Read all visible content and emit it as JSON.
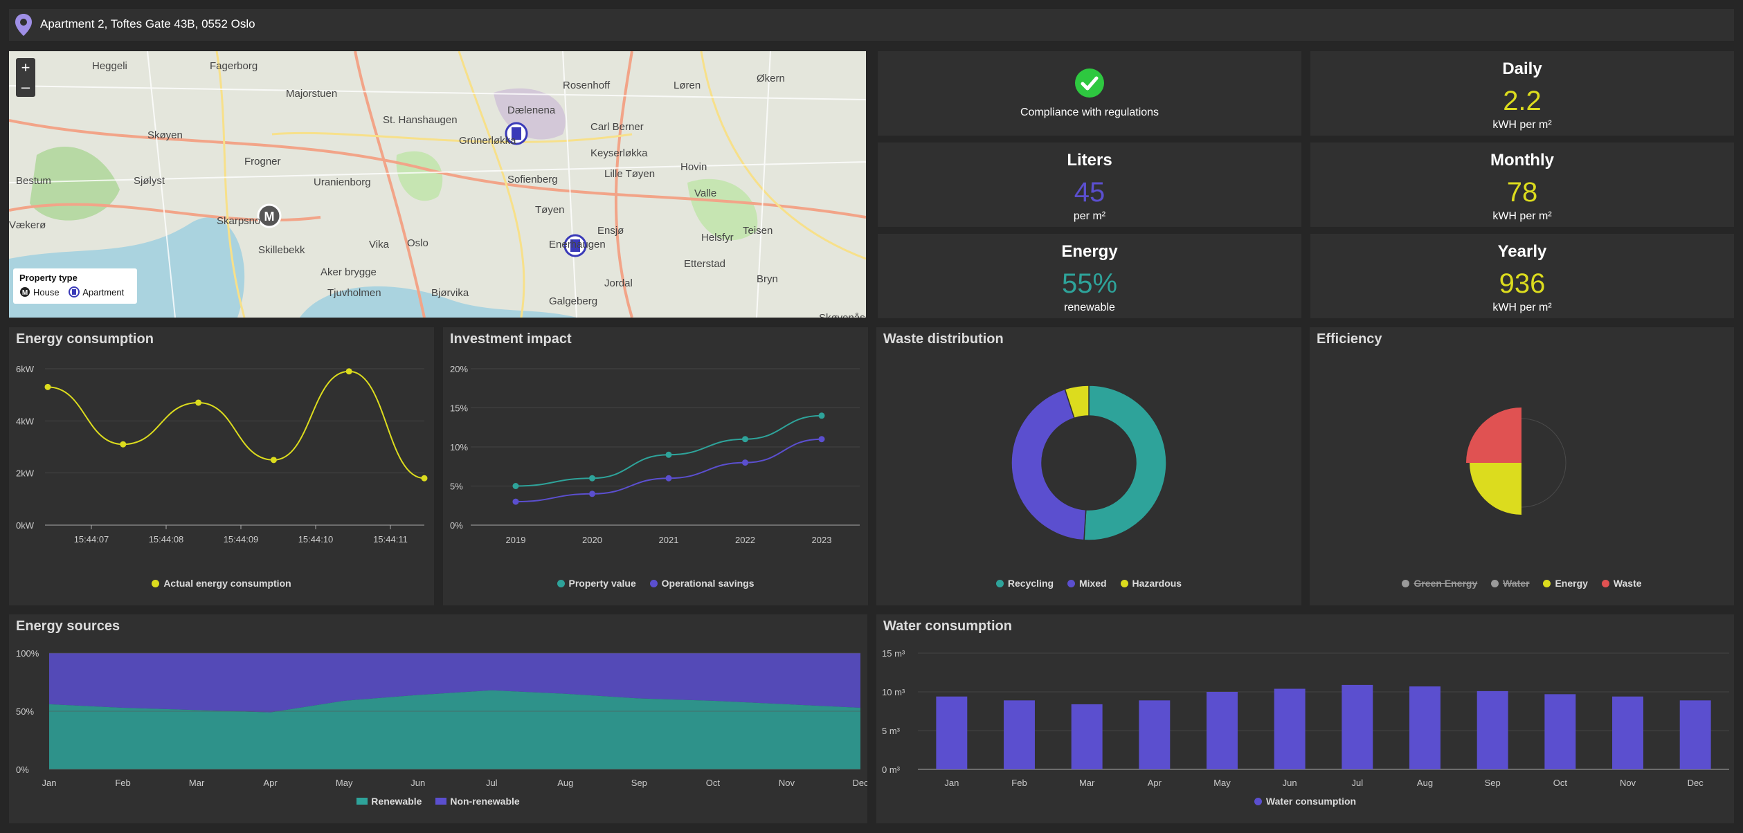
{
  "header": {
    "address": "Apartment 2, Toftes Gate 43B, 0552 Oslo"
  },
  "map": {
    "zoom_in": "+",
    "zoom_out": "–",
    "legend": {
      "title": "Property type",
      "house": "House",
      "apartment": "Apartment"
    },
    "places": [
      "Heggeli",
      "Fagerborg",
      "Rosenhoff",
      "Løren",
      "Økern",
      "Majorstuen",
      "Dælenena",
      "Skøyen",
      "St. Hanshaugen",
      "Carl Berner",
      "Frogner",
      "Grünerløkka",
      "Keyserløkka",
      "Bestum",
      "Sjølyst",
      "Uranienborg",
      "Sofienberg",
      "Hovin",
      "Lille Tøyen",
      "Valle",
      "Skarpsno",
      "Tøyen",
      "Vækerø",
      "Skillebekk",
      "Vika",
      "Oslo",
      "Ensjø",
      "Helsfyr",
      "Teisen",
      "Aker brygge",
      "Enerhaugen",
      "Etterstad",
      "Tjuvholmen",
      "Jordal",
      "Bjørvika",
      "Bryn",
      "Galgeberg",
      "Skøyenåsen"
    ]
  },
  "stats": {
    "compliance": "Compliance with regulations",
    "daily": {
      "title": "Daily",
      "value": "2.2",
      "unit": "kWH per m²"
    },
    "liters": {
      "title": "Liters",
      "value": "45",
      "unit": "per m²"
    },
    "monthly": {
      "title": "Monthly",
      "value": "78",
      "unit": "kWH per m²"
    },
    "energy": {
      "title": "Energy",
      "value": "55%",
      "unit": "renewable"
    },
    "yearly": {
      "title": "Yearly",
      "value": "936",
      "unit": "kWH per m²"
    }
  },
  "colors": {
    "yellow": "#dcdc1e",
    "purple": "#5b4fcf",
    "teal": "#2ea39a",
    "red": "#e05252",
    "grey": "#9a9a9a",
    "green": "#2ec840"
  },
  "chart_data": [
    {
      "type": "line",
      "title": "Energy consumption",
      "x_ticks": [
        "15:44:07",
        "15:44:08",
        "15:44:09",
        "15:44:10",
        "15:44:11"
      ],
      "y_ticks": [
        "0kW",
        "2kW",
        "4kW",
        "6kW"
      ],
      "ylim": [
        0,
        6
      ],
      "x": [
        0,
        1,
        2,
        3,
        4,
        5
      ],
      "series": [
        {
          "name": "Actual energy consumption",
          "values": [
            5.3,
            3.1,
            4.7,
            2.5,
            5.9,
            1.8
          ]
        }
      ]
    },
    {
      "type": "line",
      "title": "Investment impact",
      "categories": [
        "2019",
        "2020",
        "2021",
        "2022",
        "2023"
      ],
      "y_ticks": [
        "0%",
        "5%",
        "10%",
        "15%",
        "20%"
      ],
      "ylim": [
        0,
        20
      ],
      "series": [
        {
          "name": "Property value",
          "values": [
            5,
            6,
            9,
            11,
            14
          ]
        },
        {
          "name": "Operational savings",
          "values": [
            3,
            4,
            6,
            8,
            11
          ]
        }
      ]
    },
    {
      "type": "pie",
      "title": "Waste distribution",
      "labels": [
        "Recycling",
        "Mixed",
        "Hazardous"
      ],
      "values": [
        51,
        44,
        5
      ]
    },
    {
      "type": "pie",
      "title": "Efficiency",
      "labels": [
        "Green Energy",
        "Water",
        "Energy",
        "Waste"
      ],
      "hidden": [
        "Green Energy",
        "Water"
      ],
      "values": [
        0,
        0,
        75,
        80
      ]
    },
    {
      "type": "area",
      "title": "Energy sources",
      "categories": [
        "Jan",
        "Feb",
        "Mar",
        "Apr",
        "May",
        "Jun",
        "Jul",
        "Aug",
        "Sep",
        "Oct",
        "Nov",
        "Dec"
      ],
      "y_ticks": [
        "0%",
        "50%",
        "100%"
      ],
      "ylim": [
        0,
        100
      ],
      "series": [
        {
          "name": "Renewable",
          "values": [
            56,
            53,
            51,
            49,
            59,
            64,
            68,
            65,
            61,
            59,
            56,
            53
          ]
        },
        {
          "name": "Non-renewable",
          "values": [
            44,
            47,
            49,
            51,
            41,
            36,
            32,
            35,
            39,
            41,
            44,
            47
          ]
        }
      ]
    },
    {
      "type": "bar",
      "title": "Water consumption",
      "categories": [
        "Jan",
        "Feb",
        "Mar",
        "Apr",
        "May",
        "Jun",
        "Jul",
        "Aug",
        "Sep",
        "Oct",
        "Nov",
        "Dec"
      ],
      "y_ticks": [
        "0 m³",
        "5 m³",
        "10 m³",
        "15 m³"
      ],
      "ylim": [
        0,
        15
      ],
      "series": [
        {
          "name": "Water consumption",
          "values": [
            9.4,
            8.9,
            8.4,
            8.9,
            10.0,
            10.4,
            10.9,
            10.7,
            10.1,
            9.7,
            9.4,
            8.9
          ]
        }
      ]
    }
  ]
}
